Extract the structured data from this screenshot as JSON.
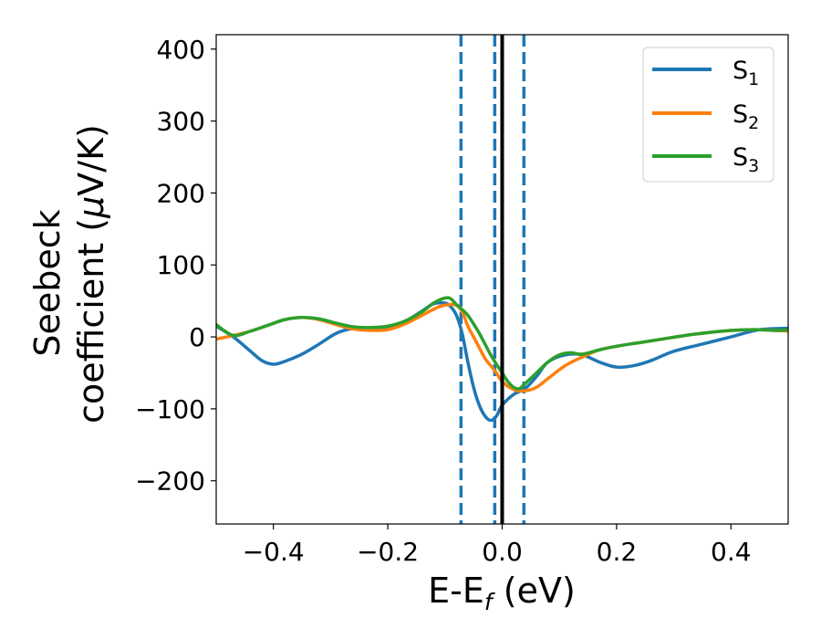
{
  "chart_data": {
    "type": "line",
    "xlabel": {
      "main": "E-E",
      "sub": "f",
      "tail": " (eV)"
    },
    "ylabel": {
      "line1": "Seebeck",
      "line2_pre": "coefficient  (",
      "mu": "μ",
      "line2_post": "V/K)"
    },
    "xlim": [
      -0.5,
      0.5
    ],
    "ylim": [
      -260,
      420
    ],
    "xticks": [
      -0.4,
      -0.2,
      0.0,
      0.2,
      0.4
    ],
    "xtick_labels": [
      "−0.4",
      "−0.2",
      "0.0",
      "0.2",
      "0.4"
    ],
    "yticks": [
      -200,
      -100,
      0,
      100,
      200,
      300,
      400
    ],
    "ytick_labels": [
      "−200",
      "−100",
      "0",
      "100",
      "200",
      "300",
      "400"
    ],
    "legend_position": "top-right",
    "vlines": [
      {
        "x": -0.072,
        "style": "dashed",
        "color": "#1f77b4"
      },
      {
        "x": -0.013,
        "style": "dashed",
        "color": "#1f77b4"
      },
      {
        "x": 0.0,
        "style": "solid",
        "color": "#000000"
      },
      {
        "x": 0.038,
        "style": "dashed",
        "color": "#1f77b4"
      }
    ],
    "series": [
      {
        "name": "S",
        "sub": "1",
        "color": "#1f77b4",
        "x": [
          -0.5,
          -0.47,
          -0.44,
          -0.42,
          -0.4,
          -0.38,
          -0.35,
          -0.32,
          -0.29,
          -0.26,
          -0.24,
          -0.22,
          -0.2,
          -0.18,
          -0.16,
          -0.14,
          -0.12,
          -0.1,
          -0.09,
          -0.08,
          -0.07,
          -0.06,
          -0.05,
          -0.04,
          -0.03,
          -0.02,
          -0.01,
          0.0,
          0.02,
          0.04,
          0.06,
          0.08,
          0.11,
          0.14,
          0.17,
          0.2,
          0.23,
          0.26,
          0.3,
          0.35,
          0.4,
          0.45,
          0.5
        ],
        "y": [
          15,
          0,
          -20,
          -33,
          -38,
          -34,
          -24,
          -10,
          5,
          12,
          12,
          12,
          14,
          18,
          26,
          36,
          46,
          47,
          42,
          30,
          5,
          -35,
          -70,
          -95,
          -110,
          -116,
          -110,
          -95,
          -80,
          -72,
          -55,
          -35,
          -25,
          -25,
          -35,
          -42,
          -40,
          -33,
          -20,
          -10,
          0,
          10,
          12
        ]
      },
      {
        "name": "S",
        "sub": "2",
        "color": "#ff7f0e",
        "x": [
          -0.5,
          -0.47,
          -0.44,
          -0.41,
          -0.38,
          -0.35,
          -0.32,
          -0.29,
          -0.26,
          -0.23,
          -0.2,
          -0.17,
          -0.14,
          -0.11,
          -0.09,
          -0.08,
          -0.07,
          -0.06,
          -0.05,
          -0.04,
          -0.03,
          -0.02,
          -0.01,
          0.0,
          0.02,
          0.04,
          0.06,
          0.08,
          0.11,
          0.14,
          0.17,
          0.2,
          0.24,
          0.28,
          0.32,
          0.36,
          0.4,
          0.44,
          0.48,
          0.5
        ],
        "y": [
          -3,
          2,
          8,
          16,
          24,
          27,
          24,
          17,
          11,
          9,
          10,
          18,
          30,
          42,
          45,
          44,
          35,
          15,
          0,
          -15,
          -30,
          -40,
          -50,
          -62,
          -73,
          -75,
          -70,
          -58,
          -40,
          -28,
          -18,
          -13,
          -8,
          -3,
          2,
          6,
          9,
          10,
          9,
          8
        ]
      },
      {
        "name": "S",
        "sub": "3",
        "color": "#2ca02c",
        "x": [
          -0.5,
          -0.47,
          -0.44,
          -0.41,
          -0.38,
          -0.35,
          -0.32,
          -0.29,
          -0.26,
          -0.23,
          -0.2,
          -0.17,
          -0.14,
          -0.12,
          -0.1,
          -0.09,
          -0.08,
          -0.07,
          -0.06,
          -0.05,
          -0.04,
          -0.03,
          -0.02,
          -0.01,
          0.0,
          0.01,
          0.02,
          0.03,
          0.04,
          0.06,
          0.08,
          0.1,
          0.12,
          0.14,
          0.17,
          0.2,
          0.24,
          0.28,
          0.32,
          0.36,
          0.4,
          0.44,
          0.48,
          0.5
        ],
        "y": [
          17,
          2,
          8,
          16,
          24,
          27,
          25,
          19,
          14,
          13,
          15,
          22,
          35,
          47,
          54,
          53,
          45,
          38,
          30,
          18,
          5,
          -10,
          -25,
          -38,
          -50,
          -62,
          -70,
          -72,
          -65,
          -50,
          -35,
          -25,
          -22,
          -24,
          -18,
          -13,
          -8,
          -3,
          2,
          6,
          9,
          10,
          9,
          10
        ]
      }
    ]
  }
}
